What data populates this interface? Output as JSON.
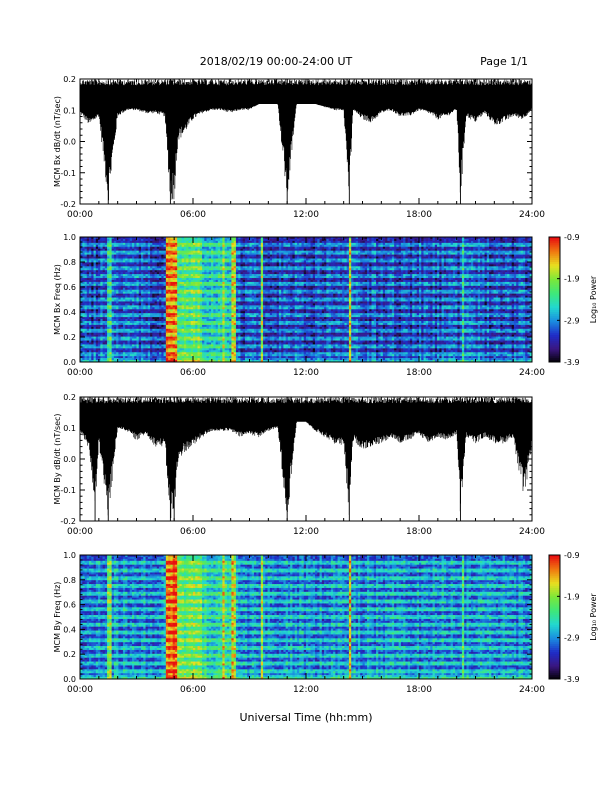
{
  "header": {
    "title": "2018/02/19   00:00-24:00 UT",
    "page": "Page 1/1"
  },
  "footer": {
    "xlabel": "Universal Time (hh:mm)"
  },
  "colorbar": {
    "label": "Log₁₀ Power",
    "ticks": [
      "-0.9",
      "-1.9",
      "-2.9",
      "-3.9"
    ],
    "range": [
      -3.9,
      -0.9
    ],
    "colors": [
      "#000000",
      "#3a1680",
      "#1f2dc8",
      "#1a8ce0",
      "#22d8d0",
      "#3ee87a",
      "#7ae83a",
      "#e8e020",
      "#f07a10",
      "#e81010"
    ]
  },
  "chart_data": [
    {
      "type": "line",
      "ylabel": "MCM Bx dB/dt (nT/sec)",
      "xticks": [
        "00:00",
        "06:00",
        "12:00",
        "18:00",
        "24:00"
      ],
      "yticks": [
        "0.2",
        "0.1",
        "0.0",
        "-0.1",
        "-0.2"
      ],
      "xlim": [
        0,
        24
      ],
      "ylim": [
        -0.2,
        0.2
      ],
      "series": [
        {
          "x": [
            0,
            0.5,
            1,
            1.5,
            2,
            2.5,
            3,
            3.5,
            4,
            4.5,
            4.8,
            5,
            5.2,
            5.5,
            6,
            6.5,
            7,
            7.5,
            8,
            8.5,
            9,
            9.5,
            10,
            10.5,
            11,
            11.5,
            12,
            12.5,
            13,
            13.5,
            14,
            14.3,
            14.5,
            15,
            15.5,
            16,
            16.5,
            17,
            17.5,
            18,
            18.5,
            19,
            19.5,
            20,
            20.2,
            20.5,
            21,
            21.5,
            22,
            22.5,
            23,
            23.5,
            24
          ],
          "y_min": [
            0.09,
            0.05,
            0.08,
            -0.2,
            0.08,
            0.1,
            0.1,
            0.09,
            0.09,
            0.08,
            -0.2,
            -0.19,
            0.0,
            0.02,
            0.07,
            0.09,
            0.1,
            0.1,
            0.09,
            0.1,
            0.1,
            0.12,
            0.12,
            0.12,
            -0.2,
            0.12,
            0.12,
            0.12,
            0.11,
            0.1,
            0.1,
            -0.2,
            0.1,
            0.07,
            0.06,
            0.09,
            0.1,
            0.08,
            0.08,
            0.1,
            0.09,
            0.07,
            0.08,
            0.1,
            -0.2,
            0.08,
            0.06,
            0.09,
            0.05,
            0.06,
            0.08,
            0.07,
            0.1
          ],
          "y_max": [
            0.2,
            0.2,
            0.2,
            0.2,
            0.2,
            0.2,
            0.2,
            0.2,
            0.2,
            0.2,
            0.2,
            0.2,
            0.2,
            0.2,
            0.2,
            0.2,
            0.2,
            0.2,
            0.2,
            0.2,
            0.2,
            0.2,
            0.2,
            0.2,
            0.2,
            0.2,
            0.2,
            0.2,
            0.2,
            0.2,
            0.2,
            0.2,
            0.2,
            0.2,
            0.2,
            0.2,
            0.2,
            0.2,
            0.2,
            0.2,
            0.2,
            0.2,
            0.2,
            0.2,
            0.2,
            0.2,
            0.2,
            0.2,
            0.2,
            0.2,
            0.2,
            0.2,
            0.2
          ]
        }
      ]
    },
    {
      "type": "heatmap",
      "ylabel": "MCM Bx Freq (Hz)",
      "xticks": [
        "00:00",
        "06:00",
        "12:00",
        "18:00",
        "24:00"
      ],
      "yticks": [
        "1.0",
        "0.8",
        "0.6",
        "0.4",
        "0.2",
        "0.0"
      ],
      "xlim": [
        0,
        24
      ],
      "ylim": [
        0,
        1
      ],
      "zlim": [
        -3.9,
        -0.9
      ],
      "background_level": -3.4,
      "broadband_bursts_hours": [
        {
          "start": 4.6,
          "end": 5.2,
          "level": -1.5
        },
        {
          "start": 5.2,
          "end": 6.5,
          "level": -2.4
        },
        {
          "start": 6.5,
          "end": 8.0,
          "level": -2.8
        },
        {
          "start": 1.5,
          "end": 1.65,
          "level": -2.6
        },
        {
          "start": 7.6,
          "end": 7.7,
          "level": -2.1
        },
        {
          "start": 8.1,
          "end": 8.25,
          "level": -2.0
        },
        {
          "start": 9.6,
          "end": 9.7,
          "level": -2.3
        },
        {
          "start": 14.3,
          "end": 14.45,
          "level": -2.0
        },
        {
          "start": 20.3,
          "end": 20.4,
          "level": -2.7
        }
      ],
      "harmonic_bands_hz": [
        0.0625,
        0.125,
        0.1875,
        0.25,
        0.3125,
        0.375,
        0.4375,
        0.5,
        0.5625,
        0.625,
        0.6875,
        0.75,
        0.8125,
        0.875,
        0.9375
      ],
      "low_frequency_enhancement_hz": 0.05
    },
    {
      "type": "line",
      "ylabel": "MCM By dB/dt (nT/sec)",
      "xticks": [
        "00:00",
        "06:00",
        "12:00",
        "18:00",
        "24:00"
      ],
      "yticks": [
        "0.2",
        "0.1",
        "0.0",
        "-0.1",
        "-0.2"
      ],
      "xlim": [
        0,
        24
      ],
      "ylim": [
        -0.2,
        0.2
      ],
      "series": [
        {
          "x": [
            0,
            0.5,
            0.8,
            1,
            1.5,
            2,
            2.5,
            3,
            3.5,
            4,
            4.5,
            4.8,
            5,
            5.2,
            5.5,
            6,
            6.5,
            7,
            7.5,
            8,
            8.5,
            9,
            9.5,
            10,
            10.5,
            11,
            11.5,
            12,
            12.5,
            13,
            13.5,
            14,
            14.3,
            14.5,
            15,
            15.5,
            16,
            16.5,
            17,
            17.5,
            18,
            18.5,
            19,
            19.5,
            20,
            20.2,
            20.5,
            21,
            21.5,
            22,
            22.5,
            23,
            23.3,
            23.6,
            24
          ],
          "y_min": [
            0.09,
            0.03,
            -0.2,
            0.05,
            -0.2,
            0.1,
            0.09,
            0.06,
            0.08,
            0.04,
            0.04,
            -0.2,
            -0.2,
            -0.02,
            0.02,
            0.04,
            0.07,
            0.09,
            0.09,
            0.09,
            0.07,
            0.08,
            0.07,
            0.09,
            0.1,
            -0.2,
            0.12,
            0.12,
            0.09,
            0.07,
            0.05,
            0.04,
            -0.2,
            0.06,
            0.03,
            0.04,
            0.05,
            0.07,
            0.05,
            0.06,
            0.08,
            0.05,
            0.07,
            0.06,
            0.08,
            -0.2,
            0.07,
            0.05,
            0.07,
            0.05,
            0.05,
            0.07,
            -0.05,
            -0.13,
            0.05
          ],
          "y_max": [
            0.2,
            0.2,
            0.2,
            0.2,
            0.2,
            0.2,
            0.2,
            0.2,
            0.2,
            0.2,
            0.2,
            0.2,
            0.2,
            0.2,
            0.2,
            0.2,
            0.2,
            0.2,
            0.2,
            0.2,
            0.2,
            0.2,
            0.2,
            0.2,
            0.2,
            0.2,
            0.2,
            0.2,
            0.2,
            0.2,
            0.2,
            0.2,
            0.2,
            0.2,
            0.2,
            0.2,
            0.2,
            0.2,
            0.2,
            0.2,
            0.2,
            0.2,
            0.2,
            0.2,
            0.2,
            0.2,
            0.2,
            0.2,
            0.2,
            0.2,
            0.2,
            0.2,
            0.2,
            0.2,
            0.2
          ]
        }
      ]
    },
    {
      "type": "heatmap",
      "ylabel": "MCM By Freq (Hz)",
      "xticks": [
        "00:00",
        "06:00",
        "12:00",
        "18:00",
        "24:00"
      ],
      "yticks": [
        "1.0",
        "0.8",
        "0.6",
        "0.4",
        "0.2",
        "0.0"
      ],
      "xlim": [
        0,
        24
      ],
      "ylim": [
        0,
        1
      ],
      "zlim": [
        -3.9,
        -0.9
      ],
      "background_level": -3.1,
      "broadband_bursts_hours": [
        {
          "start": 4.6,
          "end": 5.2,
          "level": -1.4
        },
        {
          "start": 5.2,
          "end": 6.5,
          "level": -2.3
        },
        {
          "start": 6.5,
          "end": 8.0,
          "level": -2.7
        },
        {
          "start": 1.5,
          "end": 1.65,
          "level": -2.3
        },
        {
          "start": 7.6,
          "end": 7.7,
          "level": -2.0
        },
        {
          "start": 8.1,
          "end": 8.25,
          "level": -1.9
        },
        {
          "start": 9.6,
          "end": 9.7,
          "level": -2.2
        },
        {
          "start": 14.3,
          "end": 14.45,
          "level": -1.9
        },
        {
          "start": 20.3,
          "end": 20.4,
          "level": -2.6
        }
      ],
      "harmonic_bands_hz": [
        0.0625,
        0.125,
        0.1875,
        0.25,
        0.3125,
        0.375,
        0.4375,
        0.5,
        0.5625,
        0.625,
        0.6875,
        0.75,
        0.8125,
        0.875,
        0.9375
      ],
      "low_frequency_enhancement_hz": 0.05
    }
  ]
}
